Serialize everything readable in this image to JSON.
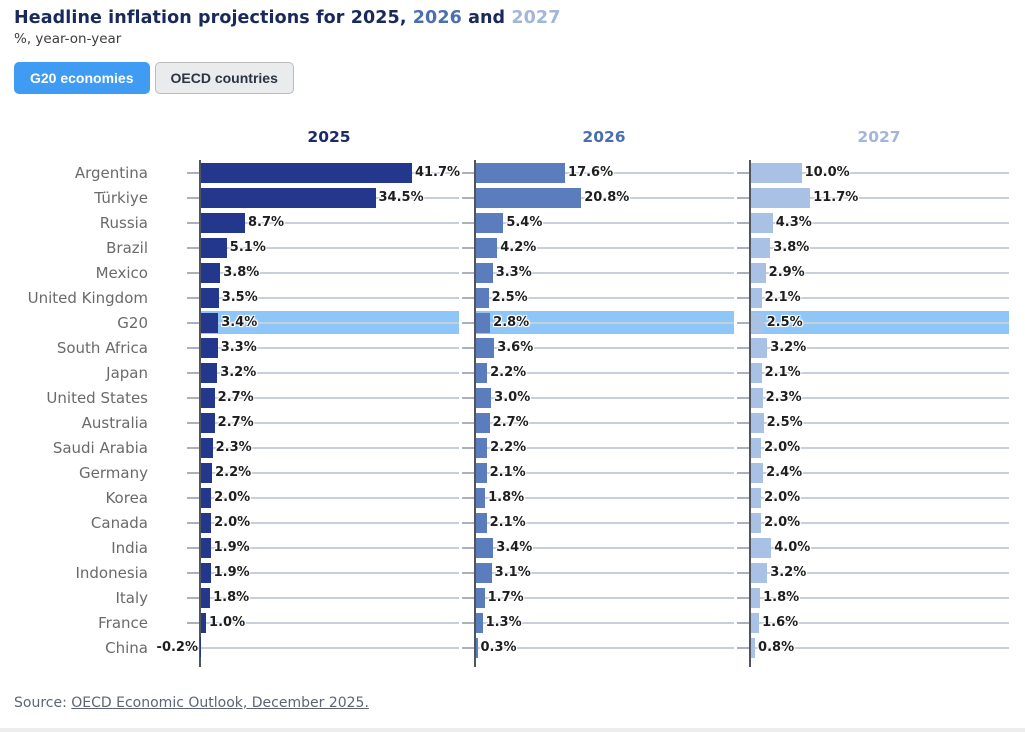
{
  "page": {
    "title": {
      "prefix": "Headline inflation projections for ",
      "year_2025": "2025",
      "comma": ", ",
      "year_2026": "2026",
      "and": " and ",
      "year_2027": "2027"
    },
    "subtitle": "%, year-on-year"
  },
  "toggles": {
    "g20_label": "G20 economies",
    "oecd_label": "OECD countries"
  },
  "chart_data": {
    "type": "bar",
    "orientation": "horizontal",
    "title": "Headline inflation projections for 2025, 2026 and 2027",
    "subtitle": "%, year-on-year",
    "value_suffix": "%",
    "xlim": [
      0,
      51
    ],
    "grid": "row-track-lines",
    "legend_position": "column-headers",
    "highlight_category": "G20",
    "categories": [
      "Argentina",
      "Türkiye",
      "Russia",
      "Brazil",
      "Mexico",
      "United Kingdom",
      "G20",
      "South Africa",
      "Japan",
      "United States",
      "Australia",
      "Saudi Arabia",
      "Germany",
      "Korea",
      "Canada",
      "India",
      "Indonesia",
      "Italy",
      "France",
      "China"
    ],
    "series": [
      {
        "name": "2025",
        "values": [
          41.7,
          34.5,
          8.7,
          5.1,
          3.8,
          3.5,
          3.4,
          3.3,
          3.2,
          2.7,
          2.7,
          2.3,
          2.2,
          2.0,
          2.0,
          1.9,
          1.9,
          1.8,
          1.0,
          -0.2
        ]
      },
      {
        "name": "2026",
        "values": [
          17.6,
          20.8,
          5.4,
          4.2,
          3.3,
          2.5,
          2.8,
          3.6,
          2.2,
          3.0,
          2.7,
          2.2,
          2.1,
          1.8,
          2.1,
          3.4,
          3.1,
          1.7,
          1.3,
          0.3
        ]
      },
      {
        "name": "2027",
        "values": [
          10.0,
          11.7,
          4.3,
          3.8,
          2.9,
          2.1,
          2.5,
          3.2,
          2.1,
          2.3,
          2.5,
          2.0,
          2.4,
          2.0,
          2.0,
          4.0,
          3.2,
          1.8,
          1.6,
          0.8
        ]
      }
    ]
  },
  "colors": {
    "series": [
      "#23378c",
      "#5b7cbd",
      "#a9c1e4"
    ],
    "header_text": [
      "#1b2c63",
      "#4a6fae",
      "#a2b6d8"
    ],
    "title_text": "#18295a",
    "highlight_row": "#8ec6f8",
    "accent_button": "#3f9cf2"
  },
  "source": {
    "prefix": "Source: ",
    "link_text": "OECD Economic Outlook, December 2025."
  }
}
